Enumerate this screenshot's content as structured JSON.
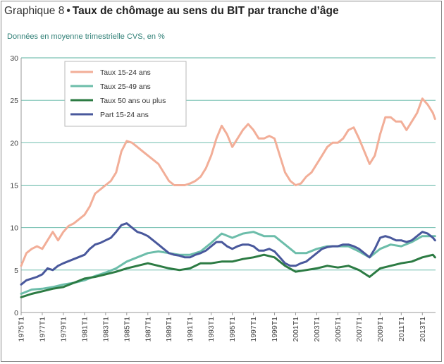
{
  "header": {
    "prefix": "Graphique 8",
    "bullet": "•",
    "title": "Taux de chômage au sens du BIT par tranche d’âge",
    "subtitle": "Données en moyenne trimestrielle CVS, en %"
  },
  "colors": {
    "taux_15_24": "#f2ae98",
    "taux_25_49": "#6cbdaa",
    "taux_50_plus": "#2c7b43",
    "part_15_24": "#49589c",
    "grid": "#5bb3a2",
    "axis": "#999999"
  },
  "chart_data": {
    "type": "line",
    "xlabel": "",
    "ylabel": "",
    "ylim": [
      0,
      30
    ],
    "yticks": [
      "0",
      "5",
      "10",
      "15",
      "20",
      "25",
      "30"
    ],
    "xticks": [
      "1975T1",
      "1977T1",
      "1979T1",
      "1981T1",
      "1983T1",
      "1985T1",
      "1987T1",
      "1989T1",
      "1991T1",
      "1993T1",
      "1995T1",
      "1997T1",
      "1999T1",
      "2001T1",
      "2003T1",
      "2005T1",
      "2007T1",
      "2009T1",
      "2011T1",
      "2013T1"
    ],
    "grid": true,
    "legend_position": "top-left",
    "series": [
      {
        "name": "Taux 15-24 ans",
        "points": [
          [
            1975.0,
            5.5
          ],
          [
            1975.5,
            7.0
          ],
          [
            1976.0,
            7.5
          ],
          [
            1976.5,
            7.8
          ],
          [
            1977.0,
            7.5
          ],
          [
            1977.5,
            8.5
          ],
          [
            1978.0,
            9.5
          ],
          [
            1978.5,
            8.5
          ],
          [
            1979.0,
            9.5
          ],
          [
            1979.5,
            10.2
          ],
          [
            1980.0,
            10.5
          ],
          [
            1980.5,
            11.0
          ],
          [
            1981.0,
            11.5
          ],
          [
            1981.5,
            12.5
          ],
          [
            1982.0,
            14.0
          ],
          [
            1982.5,
            14.5
          ],
          [
            1983.0,
            15.0
          ],
          [
            1983.5,
            15.5
          ],
          [
            1984.0,
            16.5
          ],
          [
            1984.5,
            19.0
          ],
          [
            1985.0,
            20.2
          ],
          [
            1985.5,
            20.0
          ],
          [
            1986.0,
            19.5
          ],
          [
            1986.5,
            19.0
          ],
          [
            1987.0,
            18.5
          ],
          [
            1987.5,
            18.0
          ],
          [
            1988.0,
            17.5
          ],
          [
            1988.5,
            16.5
          ],
          [
            1989.0,
            15.5
          ],
          [
            1989.5,
            15.0
          ],
          [
            1990.0,
            15.0
          ],
          [
            1990.5,
            15.0
          ],
          [
            1991.0,
            15.2
          ],
          [
            1991.5,
            15.5
          ],
          [
            1992.0,
            16.0
          ],
          [
            1992.5,
            17.0
          ],
          [
            1993.0,
            18.5
          ],
          [
            1993.5,
            20.5
          ],
          [
            1994.0,
            22.0
          ],
          [
            1994.5,
            21.0
          ],
          [
            1995.0,
            19.5
          ],
          [
            1995.5,
            20.5
          ],
          [
            1996.0,
            21.5
          ],
          [
            1996.5,
            22.2
          ],
          [
            1997.0,
            21.5
          ],
          [
            1997.5,
            20.5
          ],
          [
            1998.0,
            20.5
          ],
          [
            1998.5,
            20.8
          ],
          [
            1999.0,
            20.5
          ],
          [
            1999.5,
            18.5
          ],
          [
            2000.0,
            16.5
          ],
          [
            2000.5,
            15.5
          ],
          [
            2001.0,
            15.0
          ],
          [
            2001.5,
            15.2
          ],
          [
            2002.0,
            16.0
          ],
          [
            2002.5,
            16.5
          ],
          [
            2003.0,
            17.5
          ],
          [
            2003.5,
            18.5
          ],
          [
            2004.0,
            19.5
          ],
          [
            2004.5,
            20.0
          ],
          [
            2005.0,
            20.0
          ],
          [
            2005.5,
            20.5
          ],
          [
            2006.0,
            21.5
          ],
          [
            2006.5,
            21.8
          ],
          [
            2007.0,
            20.5
          ],
          [
            2007.5,
            19.0
          ],
          [
            2008.0,
            17.5
          ],
          [
            2008.5,
            18.5
          ],
          [
            2009.0,
            21.0
          ],
          [
            2009.5,
            23.0
          ],
          [
            2010.0,
            23.0
          ],
          [
            2010.5,
            22.5
          ],
          [
            2011.0,
            22.5
          ],
          [
            2011.5,
            21.5
          ],
          [
            2012.0,
            22.5
          ],
          [
            2012.5,
            23.5
          ],
          [
            2013.0,
            25.2
          ],
          [
            2013.5,
            24.5
          ],
          [
            2014.0,
            23.5
          ],
          [
            2014.2,
            22.8
          ]
        ]
      },
      {
        "name": "Taux 25-49 ans",
        "points": [
          [
            1975.0,
            2.2
          ],
          [
            1976.0,
            2.7
          ],
          [
            1977.0,
            2.8
          ],
          [
            1978.0,
            3.0
          ],
          [
            1979.0,
            3.3
          ],
          [
            1980.0,
            3.5
          ],
          [
            1981.0,
            3.8
          ],
          [
            1982.0,
            4.3
          ],
          [
            1983.0,
            4.7
          ],
          [
            1984.0,
            5.2
          ],
          [
            1985.0,
            6.0
          ],
          [
            1986.0,
            6.5
          ],
          [
            1987.0,
            7.0
          ],
          [
            1988.0,
            7.2
          ],
          [
            1989.0,
            7.0
          ],
          [
            1990.0,
            6.8
          ],
          [
            1991.0,
            6.8
          ],
          [
            1992.0,
            7.2
          ],
          [
            1993.0,
            8.2
          ],
          [
            1994.0,
            9.3
          ],
          [
            1995.0,
            8.8
          ],
          [
            1996.0,
            9.3
          ],
          [
            1997.0,
            9.5
          ],
          [
            1998.0,
            9.0
          ],
          [
            1999.0,
            9.0
          ],
          [
            2000.0,
            8.0
          ],
          [
            2001.0,
            7.0
          ],
          [
            2002.0,
            7.0
          ],
          [
            2003.0,
            7.5
          ],
          [
            2004.0,
            7.8
          ],
          [
            2005.0,
            7.8
          ],
          [
            2006.0,
            7.8
          ],
          [
            2007.0,
            7.2
          ],
          [
            2008.0,
            6.5
          ],
          [
            2009.0,
            7.5
          ],
          [
            2010.0,
            8.0
          ],
          [
            2011.0,
            7.8
          ],
          [
            2012.0,
            8.3
          ],
          [
            2013.0,
            9.0
          ],
          [
            2014.2,
            9.0
          ]
        ]
      },
      {
        "name": "Taux 50 ans ou plus",
        "points": [
          [
            1975.0,
            1.8
          ],
          [
            1976.0,
            2.2
          ],
          [
            1977.0,
            2.5
          ],
          [
            1978.0,
            2.8
          ],
          [
            1979.0,
            3.0
          ],
          [
            1980.0,
            3.5
          ],
          [
            1981.0,
            4.0
          ],
          [
            1982.0,
            4.2
          ],
          [
            1983.0,
            4.5
          ],
          [
            1984.0,
            4.8
          ],
          [
            1985.0,
            5.2
          ],
          [
            1986.0,
            5.5
          ],
          [
            1987.0,
            5.8
          ],
          [
            1988.0,
            5.5
          ],
          [
            1989.0,
            5.2
          ],
          [
            1990.0,
            5.0
          ],
          [
            1991.0,
            5.2
          ],
          [
            1992.0,
            5.8
          ],
          [
            1993.0,
            5.8
          ],
          [
            1994.0,
            6.0
          ],
          [
            1995.0,
            6.0
          ],
          [
            1996.0,
            6.3
          ],
          [
            1997.0,
            6.5
          ],
          [
            1998.0,
            6.8
          ],
          [
            1999.0,
            6.5
          ],
          [
            2000.0,
            5.5
          ],
          [
            2001.0,
            4.8
          ],
          [
            2002.0,
            5.0
          ],
          [
            2003.0,
            5.2
          ],
          [
            2004.0,
            5.5
          ],
          [
            2005.0,
            5.3
          ],
          [
            2006.0,
            5.5
          ],
          [
            2007.0,
            5.0
          ],
          [
            2008.0,
            4.2
          ],
          [
            2009.0,
            5.2
          ],
          [
            2010.0,
            5.5
          ],
          [
            2011.0,
            5.8
          ],
          [
            2012.0,
            6.0
          ],
          [
            2013.0,
            6.5
          ],
          [
            2014.0,
            6.8
          ],
          [
            2014.2,
            6.5
          ]
        ]
      },
      {
        "name": "Part 15-24 ans",
        "points": [
          [
            1975.0,
            3.3
          ],
          [
            1975.5,
            3.8
          ],
          [
            1976.0,
            4.0
          ],
          [
            1976.5,
            4.2
          ],
          [
            1977.0,
            4.5
          ],
          [
            1977.5,
            5.2
          ],
          [
            1978.0,
            5.0
          ],
          [
            1978.5,
            5.5
          ],
          [
            1979.0,
            5.8
          ],
          [
            1980.0,
            6.3
          ],
          [
            1981.0,
            6.8
          ],
          [
            1981.5,
            7.5
          ],
          [
            1982.0,
            8.0
          ],
          [
            1982.5,
            8.2
          ],
          [
            1983.0,
            8.5
          ],
          [
            1983.5,
            8.8
          ],
          [
            1984.0,
            9.5
          ],
          [
            1984.5,
            10.3
          ],
          [
            1985.0,
            10.5
          ],
          [
            1985.5,
            10.0
          ],
          [
            1986.0,
            9.5
          ],
          [
            1986.5,
            9.3
          ],
          [
            1987.0,
            9.0
          ],
          [
            1987.5,
            8.5
          ],
          [
            1988.0,
            8.0
          ],
          [
            1988.5,
            7.5
          ],
          [
            1989.0,
            7.0
          ],
          [
            1989.5,
            6.8
          ],
          [
            1990.0,
            6.7
          ],
          [
            1990.5,
            6.5
          ],
          [
            1991.0,
            6.5
          ],
          [
            1991.5,
            6.8
          ],
          [
            1992.0,
            7.0
          ],
          [
            1992.5,
            7.3
          ],
          [
            1993.0,
            7.8
          ],
          [
            1993.5,
            8.3
          ],
          [
            1994.0,
            8.3
          ],
          [
            1994.5,
            7.8
          ],
          [
            1995.0,
            7.5
          ],
          [
            1995.5,
            7.8
          ],
          [
            1996.0,
            8.0
          ],
          [
            1996.5,
            8.0
          ],
          [
            1997.0,
            7.8
          ],
          [
            1997.5,
            7.3
          ],
          [
            1998.0,
            7.3
          ],
          [
            1998.5,
            7.5
          ],
          [
            1999.0,
            7.2
          ],
          [
            1999.5,
            6.5
          ],
          [
            2000.0,
            5.8
          ],
          [
            2000.5,
            5.5
          ],
          [
            2001.0,
            5.5
          ],
          [
            2001.5,
            5.8
          ],
          [
            2002.0,
            6.0
          ],
          [
            2002.5,
            6.5
          ],
          [
            2003.0,
            7.0
          ],
          [
            2003.5,
            7.5
          ],
          [
            2004.0,
            7.7
          ],
          [
            2004.5,
            7.8
          ],
          [
            2005.0,
            7.8
          ],
          [
            2005.5,
            8.0
          ],
          [
            2006.0,
            8.0
          ],
          [
            2006.5,
            7.8
          ],
          [
            2007.0,
            7.5
          ],
          [
            2007.5,
            7.0
          ],
          [
            2008.0,
            6.5
          ],
          [
            2008.5,
            7.5
          ],
          [
            2009.0,
            8.8
          ],
          [
            2009.5,
            9.0
          ],
          [
            2010.0,
            8.8
          ],
          [
            2010.5,
            8.5
          ],
          [
            2011.0,
            8.5
          ],
          [
            2011.5,
            8.3
          ],
          [
            2012.0,
            8.5
          ],
          [
            2012.5,
            9.0
          ],
          [
            2013.0,
            9.5
          ],
          [
            2013.5,
            9.3
          ],
          [
            2014.0,
            8.8
          ],
          [
            2014.2,
            8.5
          ]
        ]
      }
    ]
  }
}
